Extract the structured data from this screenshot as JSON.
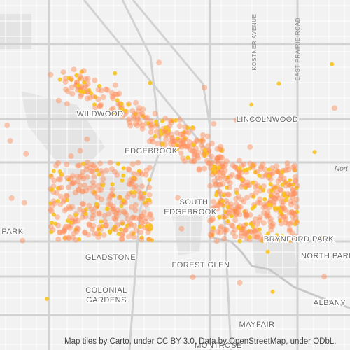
{
  "labels": {
    "wildwood": "WILDWOOD",
    "edgebrook": "EDGEBROOK",
    "lincolnwood": "LINCOLNWOOD",
    "south": "SOUTH",
    "edgebrook2": "EDGEBROOK",
    "park": "PARK",
    "brynford_park": "BRYNFORD PARK",
    "north_park": "NORTH PARK",
    "gladstone": "GLADSTONE",
    "forest_glen": "FOREST GLEN",
    "colonial": "COLONIAL",
    "gardens": "GARDENS",
    "albany": "ALBANY",
    "mayfair": "MAYFAIR",
    "montrose": "MONTROSE",
    "kostner": "KOSTNER AVENUE",
    "east_prairie": "EAST PRAIRIE ROAD",
    "nort": "Nort"
  },
  "attribution": "Map tiles by Carto, under CC BY 3.0. Data by OpenStreetMap, under ODbL."
}
